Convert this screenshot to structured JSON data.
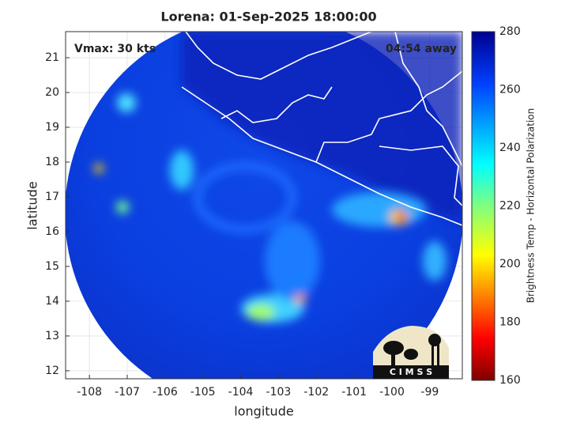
{
  "title": "Lorena: 01-Sep-2025 18:00:00",
  "vmax": "Vmax: 30 kts",
  "time_away": "04:54 away",
  "x_axis": {
    "label": "longitude",
    "lim": [
      -108.63,
      -98.14
    ],
    "ticks": [
      -108,
      -107,
      -106,
      -105,
      -104,
      -103,
      -102,
      -101,
      -100,
      -99
    ]
  },
  "y_axis": {
    "label": "latitude",
    "lim": [
      11.77,
      21.75
    ],
    "ticks": [
      12,
      13,
      14,
      15,
      16,
      17,
      18,
      19,
      20,
      21
    ]
  },
  "colorbar": {
    "label": "Brightness Temp - Horizontal Polarization",
    "lim": [
      160,
      280
    ],
    "ticks": [
      160,
      180,
      200,
      220,
      240,
      260,
      280
    ]
  },
  "logo": "C I M S S"
}
